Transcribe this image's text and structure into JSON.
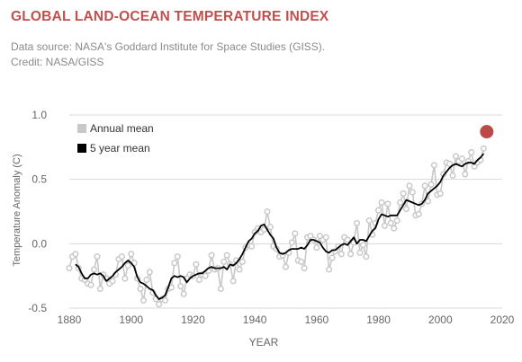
{
  "header": {
    "title": "GLOBAL LAND-OCEAN TEMPERATURE INDEX",
    "title_color": "#c0504d",
    "source_line": "Data source: NASA's Goddard Institute for Space Studies (GISS).",
    "credit_line": "Credit: NASA/GISS"
  },
  "chart_data": {
    "type": "line",
    "title": "",
    "xlabel": "YEAR",
    "ylabel": "Temperature Anomaly (C)",
    "xlim": [
      1880,
      2020
    ],
    "ylim": [
      -0.5,
      1.0
    ],
    "x_ticks": [
      "1880",
      "1900",
      "1920",
      "1940",
      "1960",
      "1980",
      "2000",
      "2020"
    ],
    "y_ticks": [
      "1.0",
      "0.5",
      "0.0",
      "-0.5"
    ],
    "grid": "horizontal",
    "legend_position": "top-left",
    "annual_color": "#c8c8c8",
    "smooth_color": "#000000",
    "highlight_color": "#b94a48",
    "series": [
      {
        "name": "Annual mean",
        "x": [
          1880,
          1881,
          1882,
          1883,
          1884,
          1885,
          1886,
          1887,
          1888,
          1889,
          1890,
          1891,
          1892,
          1893,
          1894,
          1895,
          1896,
          1897,
          1898,
          1899,
          1900,
          1901,
          1902,
          1903,
          1904,
          1905,
          1906,
          1907,
          1908,
          1909,
          1910,
          1911,
          1912,
          1913,
          1914,
          1915,
          1916,
          1917,
          1918,
          1919,
          1920,
          1921,
          1922,
          1923,
          1924,
          1925,
          1926,
          1927,
          1928,
          1929,
          1930,
          1931,
          1932,
          1933,
          1934,
          1935,
          1936,
          1937,
          1938,
          1939,
          1940,
          1941,
          1942,
          1943,
          1944,
          1945,
          1946,
          1947,
          1948,
          1949,
          1950,
          1951,
          1952,
          1953,
          1954,
          1955,
          1956,
          1957,
          1958,
          1959,
          1960,
          1961,
          1962,
          1963,
          1964,
          1965,
          1966,
          1967,
          1968,
          1969,
          1970,
          1971,
          1972,
          1973,
          1974,
          1975,
          1976,
          1977,
          1978,
          1979,
          1980,
          1981,
          1982,
          1983,
          1984,
          1985,
          1986,
          1987,
          1988,
          1989,
          1990,
          1991,
          1992,
          1993,
          1994,
          1995,
          1996,
          1997,
          1998,
          1999,
          2000,
          2001,
          2002,
          2003,
          2004,
          2005,
          2006,
          2007,
          2008,
          2009,
          2010,
          2011,
          2012,
          2013,
          2014
        ],
        "values": [
          -0.19,
          -0.1,
          -0.08,
          -0.19,
          -0.27,
          -0.28,
          -0.31,
          -0.32,
          -0.2,
          -0.1,
          -0.35,
          -0.24,
          -0.27,
          -0.31,
          -0.29,
          -0.24,
          -0.12,
          -0.1,
          -0.27,
          -0.17,
          -0.08,
          -0.15,
          -0.27,
          -0.35,
          -0.44,
          -0.28,
          -0.22,
          -0.38,
          -0.43,
          -0.47,
          -0.43,
          -0.44,
          -0.35,
          -0.34,
          -0.15,
          -0.1,
          -0.33,
          -0.39,
          -0.27,
          -0.24,
          -0.25,
          -0.16,
          -0.28,
          -0.24,
          -0.25,
          -0.21,
          -0.09,
          -0.2,
          -0.19,
          -0.35,
          -0.14,
          -0.09,
          -0.16,
          -0.29,
          -0.13,
          -0.2,
          -0.14,
          -0.03,
          -0.01,
          -0.02,
          0.09,
          0.12,
          0.09,
          0.11,
          0.25,
          0.13,
          -0.02,
          -0.04,
          -0.1,
          -0.09,
          -0.18,
          -0.07,
          0.01,
          0.08,
          -0.13,
          -0.14,
          -0.19,
          0.05,
          0.06,
          0.03,
          -0.03,
          0.06,
          0.03,
          0.05,
          -0.2,
          -0.11,
          -0.06,
          -0.02,
          -0.08,
          0.05,
          0.03,
          -0.08,
          0.01,
          0.16,
          -0.07,
          -0.01,
          -0.1,
          0.18,
          0.07,
          0.16,
          0.26,
          0.32,
          0.14,
          0.31,
          0.16,
          0.12,
          0.18,
          0.32,
          0.39,
          0.27,
          0.45,
          0.4,
          0.22,
          0.23,
          0.31,
          0.45,
          0.33,
          0.46,
          0.61,
          0.38,
          0.39,
          0.54,
          0.63,
          0.62,
          0.53,
          0.68,
          0.64,
          0.66,
          0.54,
          0.64,
          0.71,
          0.6,
          0.63,
          0.65,
          0.74
        ]
      },
      {
        "name": "5 year mean",
        "x": [
          1882,
          1883,
          1884,
          1885,
          1886,
          1887,
          1888,
          1889,
          1890,
          1891,
          1892,
          1893,
          1894,
          1895,
          1896,
          1897,
          1898,
          1899,
          1900,
          1901,
          1902,
          1903,
          1904,
          1905,
          1906,
          1907,
          1908,
          1909,
          1910,
          1911,
          1912,
          1913,
          1914,
          1915,
          1916,
          1917,
          1918,
          1919,
          1920,
          1921,
          1922,
          1923,
          1924,
          1925,
          1926,
          1927,
          1928,
          1929,
          1930,
          1931,
          1932,
          1933,
          1934,
          1935,
          1936,
          1937,
          1938,
          1939,
          1940,
          1941,
          1942,
          1943,
          1944,
          1945,
          1946,
          1947,
          1948,
          1949,
          1950,
          1951,
          1952,
          1953,
          1954,
          1955,
          1956,
          1957,
          1958,
          1959,
          1960,
          1961,
          1962,
          1963,
          1964,
          1965,
          1966,
          1967,
          1968,
          1969,
          1970,
          1971,
          1972,
          1973,
          1974,
          1975,
          1976,
          1977,
          1978,
          1979,
          1980,
          1981,
          1982,
          1983,
          1984,
          1985,
          1986,
          1987,
          1988,
          1989,
          1990,
          1991,
          1992,
          1993,
          1994,
          1995,
          1996,
          1997,
          1998,
          1999,
          2000,
          2001,
          2002,
          2003,
          2004,
          2005,
          2006,
          2007,
          2008,
          2009,
          2010,
          2011,
          2012,
          2013,
          2014
        ],
        "values": [
          -0.16,
          -0.18,
          -0.23,
          -0.27,
          -0.27,
          -0.24,
          -0.23,
          -0.24,
          -0.23,
          -0.25,
          -0.29,
          -0.27,
          -0.25,
          -0.22,
          -0.2,
          -0.18,
          -0.15,
          -0.13,
          -0.15,
          -0.18,
          -0.26,
          -0.3,
          -0.31,
          -0.33,
          -0.35,
          -0.36,
          -0.4,
          -0.43,
          -0.42,
          -0.4,
          -0.34,
          -0.27,
          -0.25,
          -0.26,
          -0.25,
          -0.26,
          -0.3,
          -0.27,
          -0.25,
          -0.24,
          -0.23,
          -0.23,
          -0.21,
          -0.19,
          -0.18,
          -0.19,
          -0.19,
          -0.19,
          -0.18,
          -0.2,
          -0.16,
          -0.17,
          -0.15,
          -0.12,
          -0.08,
          -0.03,
          0.02,
          0.04,
          0.08,
          0.1,
          0.14,
          0.15,
          0.11,
          0.07,
          0.04,
          -0.03,
          -0.07,
          -0.08,
          -0.07,
          -0.05,
          -0.04,
          -0.04,
          -0.04,
          -0.03,
          -0.04,
          -0.01,
          0.03,
          0.03,
          0.02,
          0.01,
          -0.03,
          -0.06,
          -0.07,
          -0.05,
          -0.05,
          -0.03,
          -0.01,
          0.0,
          -0.01,
          0.02,
          0.05,
          0.0,
          0.03,
          0.03,
          0.02,
          0.06,
          0.1,
          0.12,
          0.19,
          0.23,
          0.22,
          0.21,
          0.22,
          0.22,
          0.22,
          0.26,
          0.3,
          0.34,
          0.33,
          0.32,
          0.31,
          0.3,
          0.31,
          0.34,
          0.39,
          0.41,
          0.43,
          0.45,
          0.48,
          0.53,
          0.56,
          0.59,
          0.61,
          0.62,
          0.61,
          0.6,
          0.62,
          0.63,
          0.63,
          0.62,
          0.65,
          0.67,
          0.7
        ]
      }
    ],
    "highlight_point": {
      "x": 2015,
      "y": 0.87
    }
  }
}
